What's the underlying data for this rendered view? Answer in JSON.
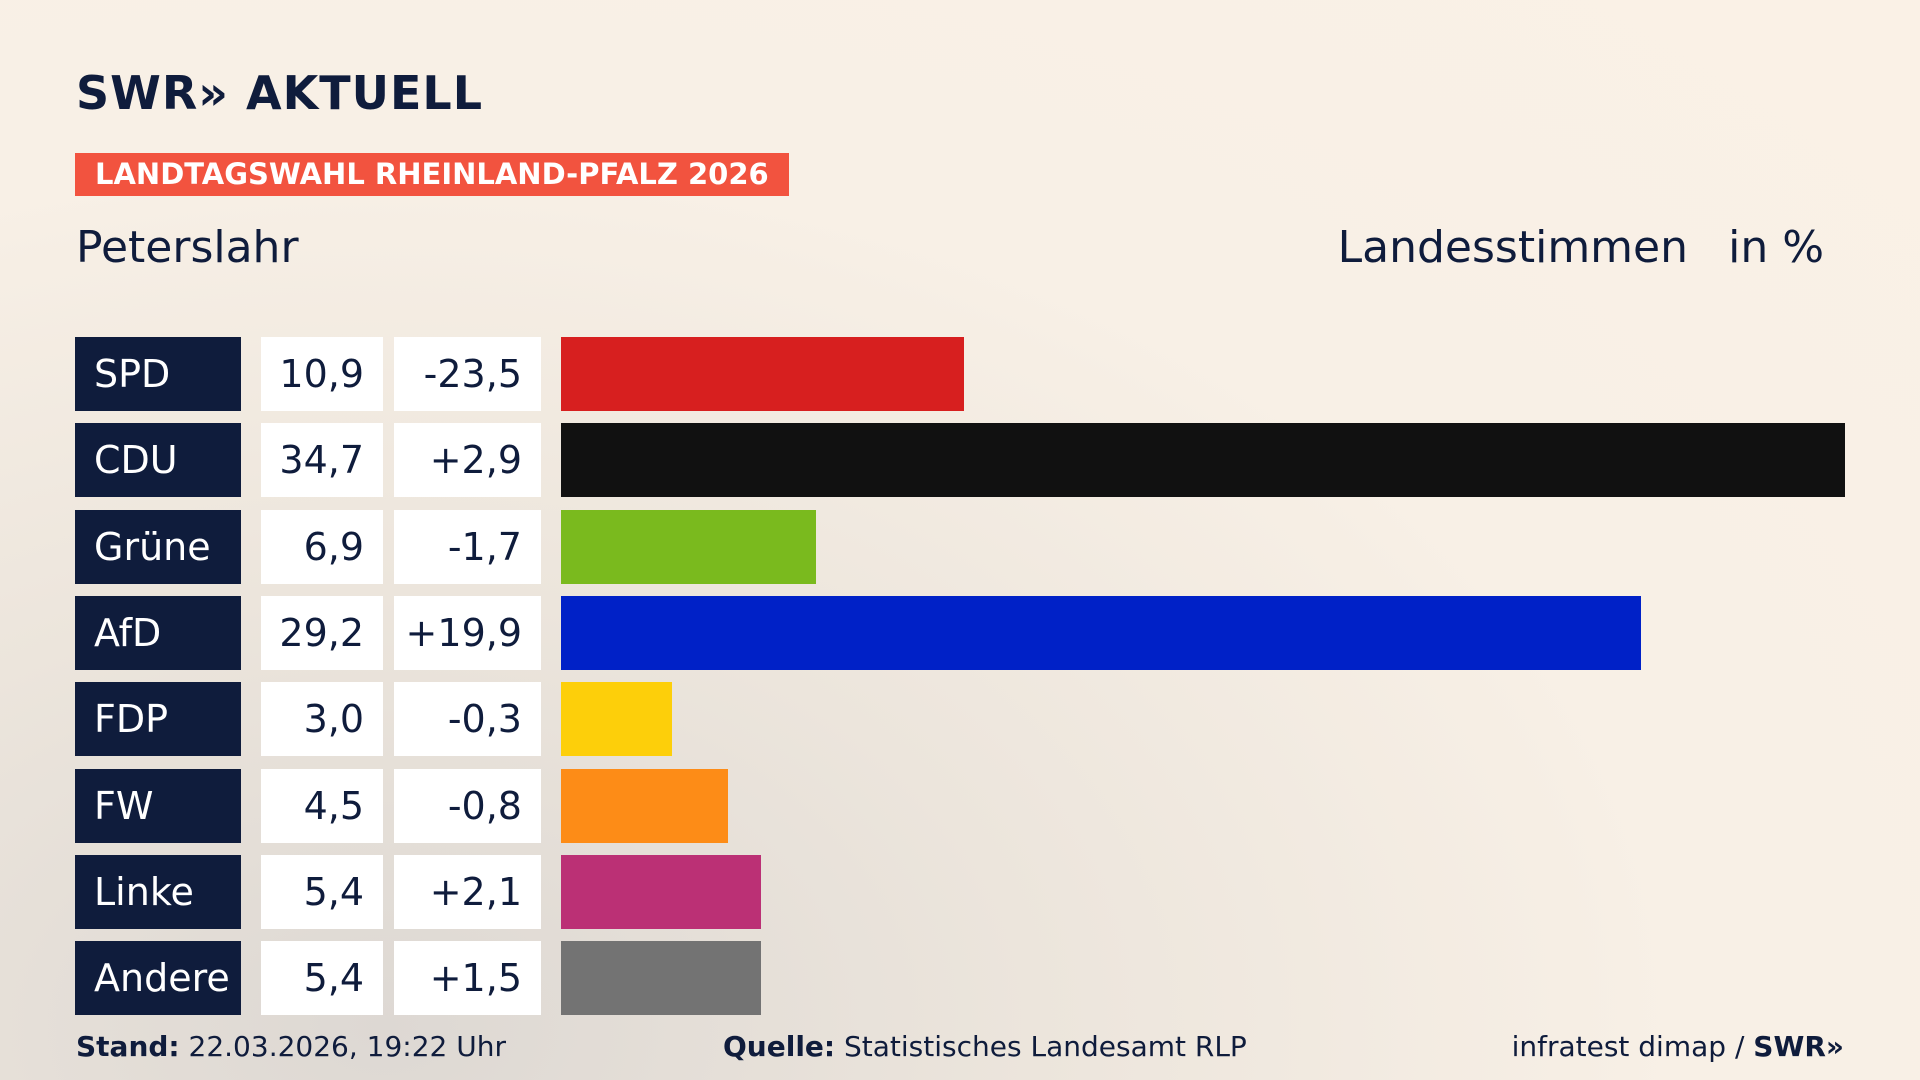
{
  "header": {
    "logo": "SWR» AKTUELL",
    "badge": "LANDTAGSWAHL RHEINLAND-PFALZ 2026"
  },
  "chart_data": {
    "type": "bar",
    "title": "Peterslahr",
    "subtitle": "Landesstimmen",
    "unit": "in %",
    "categories": [
      "SPD",
      "CDU",
      "Grüne",
      "AfD",
      "FDP",
      "FW",
      "Linke",
      "Andere"
    ],
    "values": [
      10.9,
      34.7,
      6.9,
      29.2,
      3.0,
      4.5,
      5.4,
      5.4
    ],
    "value_labels": [
      "10,9",
      "34,7",
      "6,9",
      "29,2",
      "3,0",
      "4,5",
      "5,4",
      "5,4"
    ],
    "changes": [
      "-23,5",
      "+2,9",
      "-1,7",
      "+19,9",
      "-0,3",
      "-0,8",
      "+2,1",
      "+1,5"
    ],
    "colors": [
      "#d71f1f",
      "#111111",
      "#7aba1e",
      "#0021c7",
      "#fdcf0a",
      "#fd8c17",
      "#bb3075",
      "#737373"
    ]
  },
  "footer": {
    "stand_label": "Stand:",
    "stand": "22.03.2026, 19:22 Uhr",
    "source_label": "Quelle:",
    "source": "Statistisches Landesamt RLP",
    "credit": "infratest dimap /",
    "credit_logo": "SWR»"
  }
}
